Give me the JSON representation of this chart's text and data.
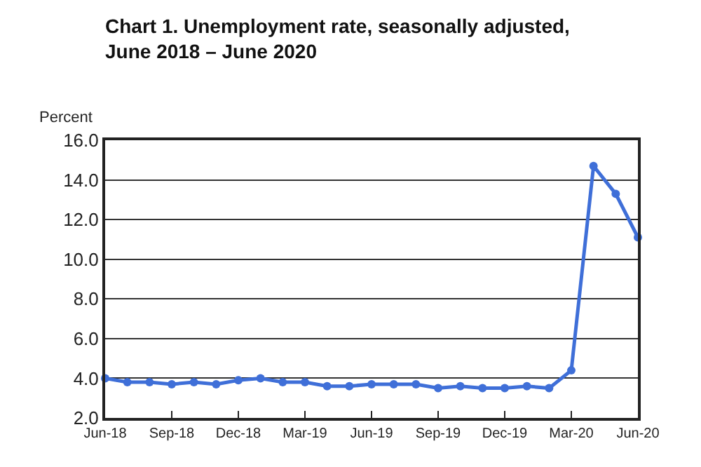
{
  "chart_data": {
    "type": "line",
    "title": "Chart 1. Unemployment rate, seasonally adjusted,\nJune 2018 – June 2020",
    "ylabel": "Percent",
    "categories": [
      "Jun-18",
      null,
      null,
      "Sep-18",
      null,
      null,
      "Dec-18",
      null,
      null,
      "Mar-19",
      null,
      null,
      "Jun-19",
      null,
      null,
      "Sep-19",
      null,
      null,
      "Dec-19",
      null,
      null,
      "Mar-20",
      null,
      null,
      "Jun-20"
    ],
    "series": [
      {
        "color": "#3f6fd8",
        "values": [
          4.0,
          3.8,
          3.8,
          3.7,
          3.8,
          3.7,
          3.9,
          4.0,
          3.8,
          3.8,
          3.6,
          3.6,
          3.7,
          3.7,
          3.7,
          3.5,
          3.6,
          3.5,
          3.5,
          3.6,
          3.5,
          4.4,
          14.7,
          13.3,
          11.1
        ]
      }
    ],
    "ylim": [
      2.0,
      16.0
    ],
    "yticks": [
      {
        "value": 2,
        "label": "2.0"
      },
      {
        "value": 4,
        "label": "4.0"
      },
      {
        "value": 6,
        "label": "6.0"
      },
      {
        "value": 8,
        "label": "8.0"
      },
      {
        "value": 10,
        "label": "10.0"
      },
      {
        "value": 12,
        "label": "12.0"
      },
      {
        "value": 14,
        "label": "14.0"
      },
      {
        "value": 16,
        "label": "16.0"
      }
    ],
    "grid": "y",
    "marker": "circle",
    "line_style": "solid",
    "legend": false
  }
}
